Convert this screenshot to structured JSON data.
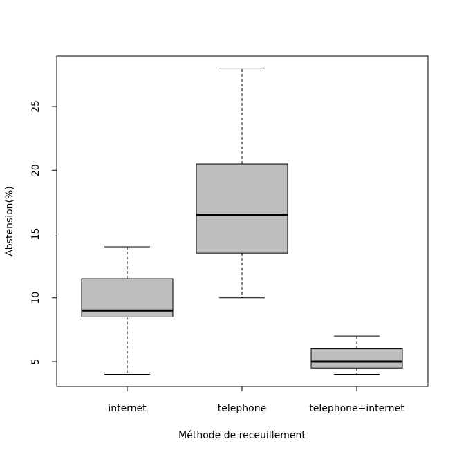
{
  "chart_data": {
    "type": "boxplot",
    "title": "",
    "xlabel": "Méthode de receuillement",
    "ylabel": "Abstension(%)",
    "ylim": [
      3,
      29
    ],
    "yticks": [
      5,
      10,
      15,
      20,
      25
    ],
    "grid": false,
    "colors": {
      "box_fill": "#bebebe",
      "stroke": "#000000",
      "background": "#ffffff"
    },
    "categories": [
      "internet",
      "telephone",
      "telephone+internet"
    ],
    "boxes": [
      {
        "category": "internet",
        "min": 4,
        "q1": 8.5,
        "median": 9,
        "q3": 11.5,
        "max": 14
      },
      {
        "category": "telephone",
        "min": 10,
        "q1": 13.5,
        "median": 16.5,
        "q3": 20.5,
        "max": 28
      },
      {
        "category": "telephone+internet",
        "min": 4,
        "q1": 4.5,
        "median": 5,
        "q3": 6,
        "max": 7
      }
    ]
  }
}
